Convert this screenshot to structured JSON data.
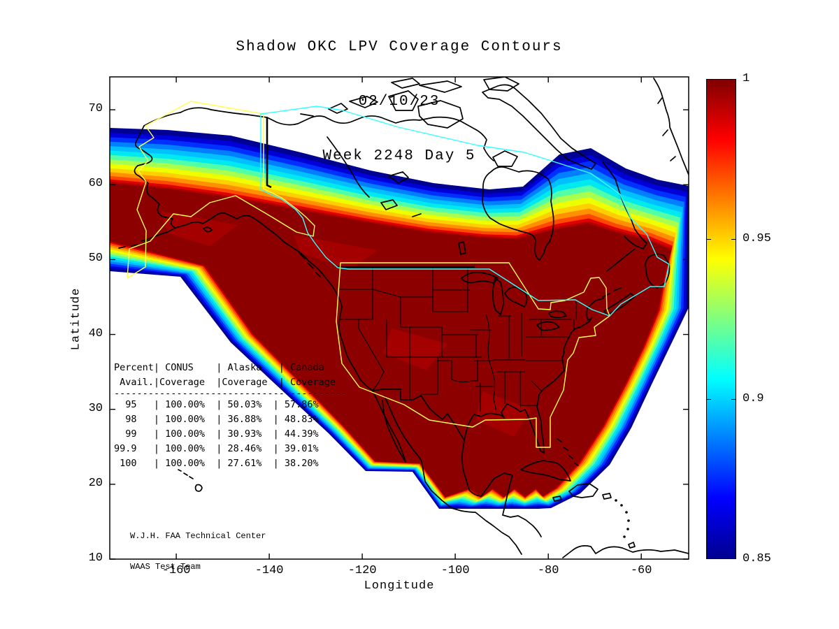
{
  "title": {
    "line1": "Shadow OKC LPV Coverage Contours",
    "line2": "02/10/23",
    "line3": "Week 2248 Day 5"
  },
  "axes": {
    "xlabel": "Longitude",
    "ylabel": "Latitude",
    "x_tick_labels": [
      "-160",
      "-140",
      "-120",
      "-100",
      "-80",
      "-60"
    ],
    "y_tick_labels": [
      "70",
      "60",
      "50",
      "40",
      "30",
      "20",
      "10"
    ]
  },
  "colorbar": {
    "tick_labels": [
      "1",
      "0.95",
      "0.9",
      "0.85"
    ],
    "min": 0.85,
    "max": 1.0
  },
  "coverage_table": {
    "lines": [
      "Percent| CONUS    | Alaska   | Canada",
      " Avail.|Coverage  |Coverage  | Coverage",
      "-----------------------------------------",
      "  95   | 100.00%  | 50.03%  | 57.86%",
      "  98   | 100.00%  | 36.88%  | 48.83%",
      "  99   | 100.00%  | 30.93%  | 44.39%",
      "99.9   | 100.00%  | 28.46%  | 39.01%",
      " 100   | 100.00%  | 27.61%  | 38.20%"
    ]
  },
  "attribution": {
    "line1": "W.J.H. FAA Technical Center",
    "line2": "WAAS Test Team"
  },
  "chart_data": {
    "type": "filled-contour-map",
    "title": "Shadow OKC LPV Coverage Contours",
    "date": "02/10/23",
    "week_day": "Week 2248 Day 5",
    "xlabel": "Longitude",
    "ylabel": "Latitude",
    "x_range": [
      -174.3,
      -49.8
    ],
    "y_range": [
      10,
      74.4
    ],
    "x_ticks": [
      -160,
      -140,
      -120,
      -100,
      -80,
      -60
    ],
    "y_ticks": [
      10,
      20,
      30,
      40,
      50,
      60,
      70
    ],
    "grid": false,
    "colorbar": {
      "min": 0.85,
      "max": 1.0,
      "ticks": [
        0.85,
        0.9,
        0.95,
        1
      ],
      "colormap": "jet",
      "orientation": "vertical",
      "position": "right"
    },
    "contour_band_colors": [
      "#000092",
      "#0000D8",
      "#0030FF",
      "#0080FF",
      "#00C0FF",
      "#00E8F0",
      "#50FFA8",
      "#A8FF50",
      "#EEFF00",
      "#FFD000",
      "#FF9000",
      "#FF4800",
      "#E00000",
      "#B00000"
    ],
    "contour_band_ts": [
      0,
      0.09,
      0.17,
      0.25,
      0.33,
      0.41,
      0.49,
      0.57,
      0.65,
      0.73,
      0.8,
      0.87,
      0.93,
      0.97
    ],
    "core_color": "#8C0000",
    "core_patch_color": "#A40000",
    "jet_gradient": "linear-gradient(to bottom,#800000 0%,#FF0000 12.5%,#FFFF00 37.5%,#00FFFF 62.5%,#0000FF 87.5%,#000090 100%)",
    "coast_color": "#000000",
    "boundary_line_colors": {
      "yellow": "#FFFF55",
      "cyan": "#33FFFF"
    },
    "coverage_table": {
      "columns": [
        "Percent Avail.",
        "CONUS Coverage",
        "Alaska Coverage",
        "Canada Coverage"
      ],
      "rows": [
        [
          "95",
          "100.00%",
          "50.03%",
          "57.86%"
        ],
        [
          "98",
          "100.00%",
          "36.88%",
          "48.83%"
        ],
        [
          "99",
          "100.00%",
          "30.93%",
          "44.39%"
        ],
        [
          "99.9",
          "100.00%",
          "28.46%",
          "39.01%"
        ],
        [
          "100",
          "100.00%",
          "27.61%",
          "38.20%"
        ]
      ]
    }
  }
}
